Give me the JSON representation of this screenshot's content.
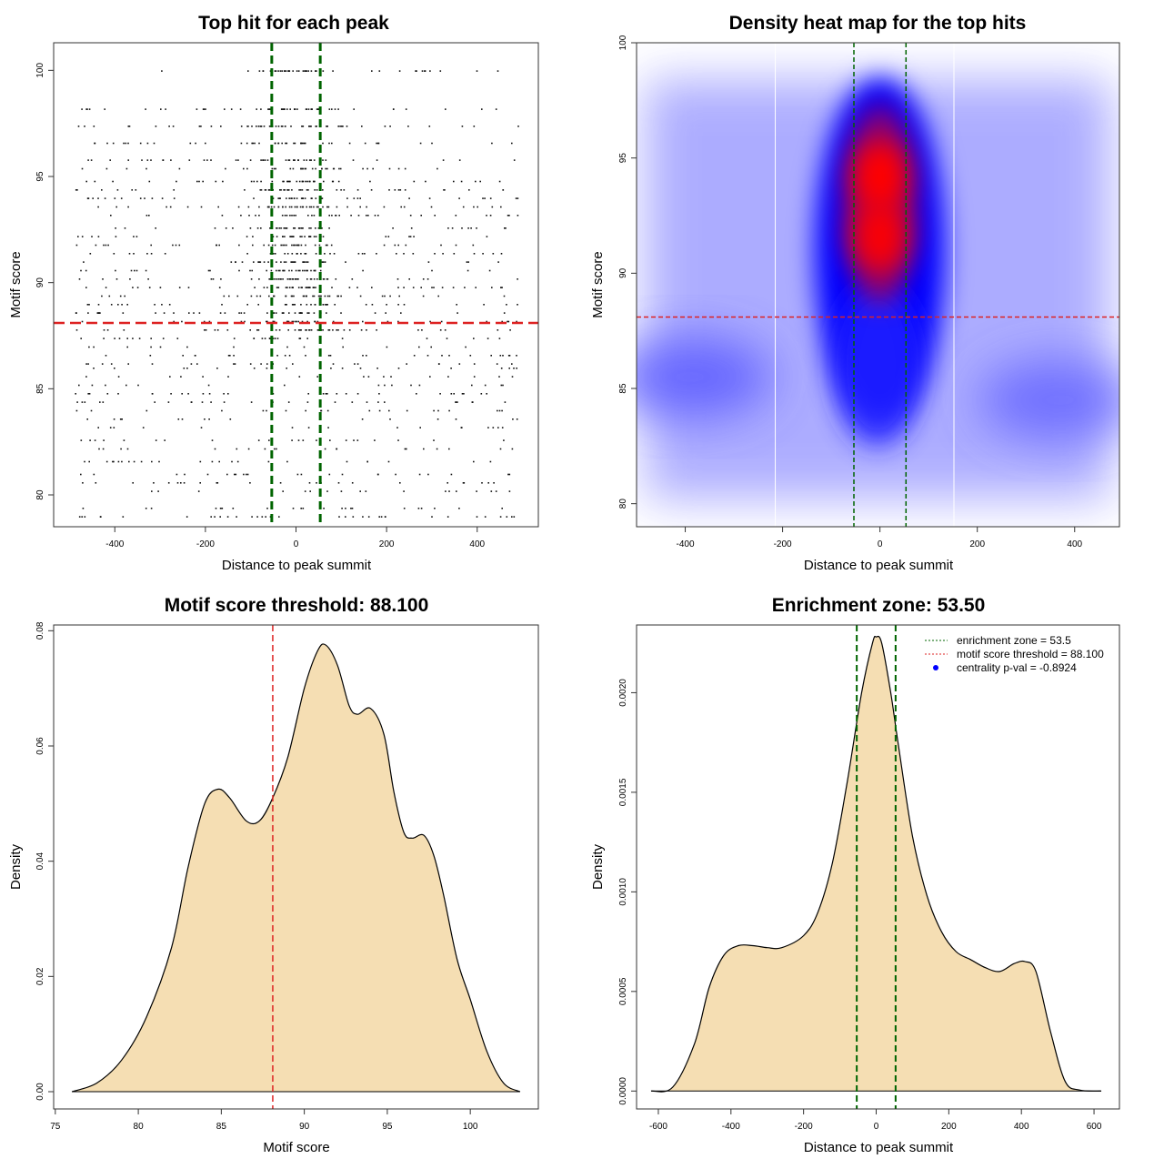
{
  "colors": {
    "green": "#006400",
    "red": "#dd2222",
    "fill": "#f5deb3",
    "heat_blue": "#0000ff",
    "heat_red": "#ff0000"
  },
  "chart_data": [
    {
      "id": "scatter",
      "type": "scatter",
      "title": "Top hit for each peak",
      "xlabel": "Distance to peak summit",
      "ylabel": "Motif score",
      "xlim": [
        -535,
        535
      ],
      "ylim": [
        78.5,
        101.3
      ],
      "xticks": [
        -400,
        -200,
        0,
        200,
        400
      ],
      "yticks": [
        80,
        85,
        90,
        95,
        100
      ],
      "vlines": [
        -53.5,
        53.5
      ],
      "hline": 88.1,
      "score_levels": [
        79.0,
        79.4,
        80.2,
        80.6,
        81.0,
        81.6,
        82.2,
        82.6,
        83.2,
        83.6,
        84.0,
        84.4,
        84.8,
        85.2,
        85.6,
        86.0,
        86.2,
        86.6,
        87.0,
        87.4,
        87.8,
        88.2,
        88.6,
        89.0,
        89.4,
        89.8,
        90.2,
        90.6,
        91.0,
        91.4,
        91.8,
        92.2,
        92.6,
        93.2,
        93.6,
        94.0,
        94.4,
        94.8,
        95.4,
        95.8,
        96.6,
        97.4,
        98.2,
        100.0
      ],
      "n_points": 1500
    },
    {
      "id": "heatmap",
      "type": "heatmap",
      "title": "Density heat map for the top hits",
      "xlabel": "Distance to peak summit",
      "ylabel": "Motif score",
      "xlim": [
        -500,
        492
      ],
      "ylim": [
        79.0,
        100.0
      ],
      "xticks": [
        -400,
        -200,
        0,
        200,
        400
      ],
      "yticks": [
        80,
        85,
        90,
        95,
        100
      ],
      "vlines": [
        -53.5,
        53.5
      ],
      "white_vlines": [
        -215,
        152
      ],
      "hline": 88.1,
      "hotspots": [
        {
          "x": 0,
          "y": 94.2,
          "strength": 1.0
        },
        {
          "x": 0,
          "y": 91.6,
          "strength": 0.95
        },
        {
          "x": -390,
          "y": 85.5,
          "strength": 0.45
        },
        {
          "x": 370,
          "y": 84.5,
          "strength": 0.35
        }
      ]
    },
    {
      "id": "score_density",
      "type": "area",
      "title": "Motif score threshold: 88.100",
      "xlabel": "Motif score",
      "ylabel": "Density",
      "xlim": [
        74.9,
        104.1
      ],
      "ylim": [
        -0.003,
        0.081
      ],
      "xticks": [
        75,
        80,
        85,
        90,
        95,
        100
      ],
      "yticks": [
        0.0,
        0.02,
        0.04,
        0.06,
        0.08
      ],
      "ytick_labels": [
        "0.00",
        "0.02",
        "0.04",
        "0.06",
        "0.08"
      ],
      "vline": 88.1,
      "x": [
        76.0,
        77.5,
        79.0,
        80.5,
        82.0,
        83.0,
        84.0,
        84.8,
        85.5,
        86.5,
        87.3,
        88.1,
        89.0,
        90.0,
        90.8,
        91.3,
        92.0,
        92.7,
        93.2,
        94.0,
        94.8,
        95.4,
        96.0,
        96.5,
        97.2,
        97.8,
        98.4,
        99.2,
        100.0,
        101.0,
        102.0,
        103.0
      ],
      "y": [
        0.0,
        0.0015,
        0.0055,
        0.013,
        0.025,
        0.039,
        0.05,
        0.0525,
        0.051,
        0.047,
        0.047,
        0.051,
        0.058,
        0.07,
        0.0765,
        0.0775,
        0.074,
        0.067,
        0.0655,
        0.0665,
        0.062,
        0.052,
        0.045,
        0.044,
        0.0445,
        0.041,
        0.034,
        0.023,
        0.016,
        0.007,
        0.0015,
        0.0
      ]
    },
    {
      "id": "distance_density",
      "type": "area",
      "title": "Enrichment zone: 53.50",
      "xlabel": "Distance to peak summit",
      "ylabel": "Density",
      "xlim": [
        -660,
        670
      ],
      "ylim": [
        -9e-05,
        0.00234
      ],
      "xticks": [
        -600,
        -400,
        -200,
        0,
        200,
        400,
        600
      ],
      "yticks": [
        0.0,
        0.0005,
        0.001,
        0.0015,
        0.002
      ],
      "ytick_labels": [
        "0.0000",
        "0.0005",
        "0.0010",
        "0.0015",
        "0.0020"
      ],
      "vlines": [
        -53.5,
        53.5
      ],
      "x": [
        -620,
        -560,
        -500,
        -460,
        -420,
        -380,
        -340,
        -300,
        -260,
        -200,
        -160,
        -120,
        -80,
        -40,
        -10,
        0,
        15,
        40,
        60,
        100,
        140,
        180,
        220,
        260,
        300,
        340,
        380,
        410,
        440,
        480,
        520,
        560,
        620
      ],
      "y": [
        0.0,
        2e-05,
        0.00024,
        0.00052,
        0.00068,
        0.00073,
        0.00073,
        0.00072,
        0.00072,
        0.00078,
        0.0009,
        0.00115,
        0.00155,
        0.002,
        0.00225,
        0.00228,
        0.00225,
        0.002,
        0.00175,
        0.00128,
        0.00098,
        0.0008,
        0.0007,
        0.00066,
        0.00062,
        0.0006,
        0.00064,
        0.00065,
        0.0006,
        0.0003,
        5e-05,
        5e-06,
        0.0
      ],
      "legend": [
        {
          "label": "enrichment zone = 53.5",
          "style": "green-dotted"
        },
        {
          "label": "motif score threshold = 88.100",
          "style": "red-dotted"
        },
        {
          "label": "centrality p-val = -0.8924",
          "style": "blue-dot"
        }
      ]
    }
  ]
}
